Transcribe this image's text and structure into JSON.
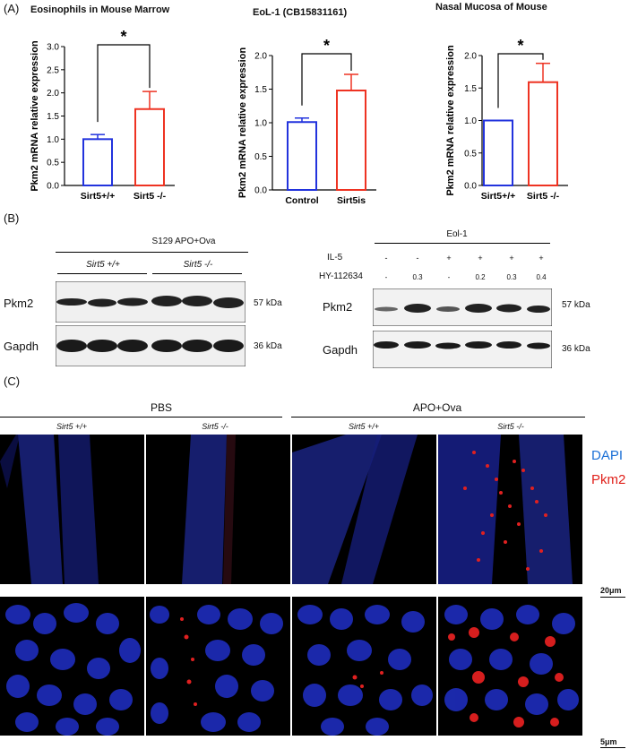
{
  "panel_labels": {
    "a": "(A)",
    "b": "(B)",
    "c": "(C)"
  },
  "chart_data": [
    {
      "type": "bar",
      "title": "Eosinophils in Mouse Marrow",
      "ylabel": "Pkm2 mRNA relative expression",
      "categories": [
        "Sirt5+/+",
        "Sirt5 -/-"
      ],
      "values": [
        1.0,
        1.65
      ],
      "errors": [
        0.1,
        0.38
      ],
      "colors": [
        "#2233dd",
        "#ee3322"
      ],
      "ylim": [
        0,
        3.0
      ],
      "yticks": [
        "0.0",
        "0.5",
        "1.0",
        "1.5",
        "2.0",
        "2.5",
        "3.0"
      ],
      "significance": "*"
    },
    {
      "type": "bar",
      "title": "EoL-1 (CB15831161)",
      "ylabel": "Pkm2 mRNA relative expression",
      "categories": [
        "Control",
        "Sirt5is"
      ],
      "values": [
        1.01,
        1.48
      ],
      "errors": [
        0.06,
        0.24
      ],
      "colors": [
        "#2233dd",
        "#ee3322"
      ],
      "ylim": [
        0,
        2.0
      ],
      "yticks": [
        "0.0",
        "0.5",
        "1.0",
        "1.5",
        "2.0"
      ],
      "significance": "*"
    },
    {
      "type": "bar",
      "title": "Nasal Mucosa of Mouse",
      "ylabel": "Pkm2 mRNA relative expression",
      "categories": [
        "Sirt5+/+",
        "Sirt5 -/-"
      ],
      "values": [
        1.0,
        1.59
      ],
      "errors": [
        0.0,
        0.29
      ],
      "colors": [
        "#2233dd",
        "#ee3322"
      ],
      "ylim": [
        0,
        2.0
      ],
      "yticks": [
        "0.0",
        "0.5",
        "1.0",
        "1.5",
        "2.0"
      ],
      "significance": "*"
    }
  ],
  "western_left": {
    "header": "S129 APO+Ova",
    "group1": "Sirt5 +/+",
    "group2": "Sirt5 -/-",
    "row1": "Pkm2",
    "row2": "Gapdh",
    "kda1": "57 kDa",
    "kda2": "36 kDa"
  },
  "western_right": {
    "header": "Eol-1",
    "il5_label": "IL-5",
    "il5_values": [
      "-",
      "-",
      "+",
      "+",
      "+",
      "+"
    ],
    "hy_label": "HY-112634",
    "hy_values": [
      "-",
      "0.3",
      "-",
      "0.2",
      "0.3",
      "0.4"
    ],
    "row1": "Pkm2",
    "row2": "Gapdh",
    "kda1": "57 kDa",
    "kda2": "36 kDa"
  },
  "panel_c": {
    "group_pbs": "PBS",
    "group_apo": "APO+Ova",
    "col_labels": [
      "Sirt5 +/+",
      "Sirt5 -/-",
      "Sirt5 +/+",
      "Sirt5 -/-"
    ],
    "legend_dapi": "DAPI",
    "legend_pkm2": "Pkm2",
    "legend_dapi_color": "#1a6fd6",
    "legend_pkm2_color": "#e0201a",
    "scale1": "20μm",
    "scale2": "5μm"
  }
}
